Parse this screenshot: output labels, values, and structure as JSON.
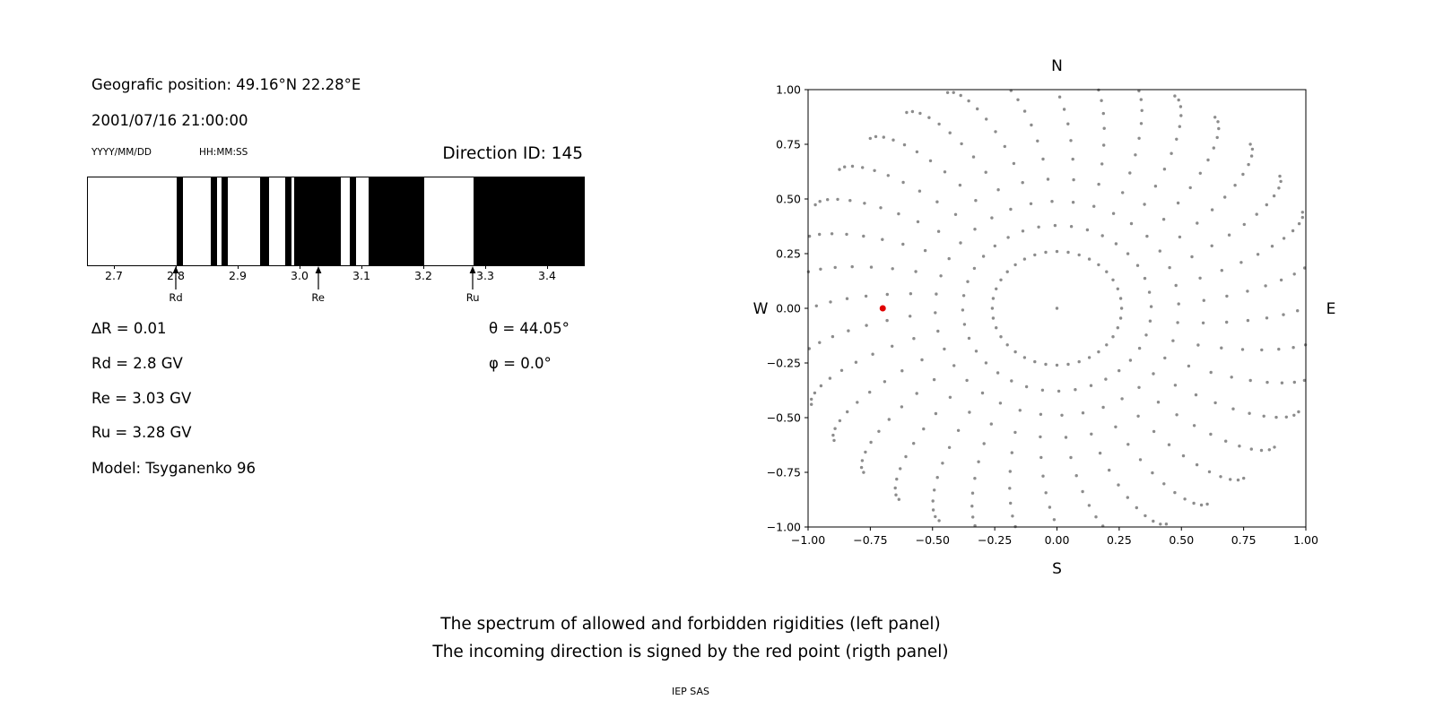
{
  "header": {
    "geo_position": "Geografic position: 49.16°N 22.28°E",
    "datetime": "2001/07/16 21:00:00",
    "date_format": "YYYY/MM/DD",
    "time_format": "HH:MM:SS",
    "direction_id": "Direction ID: 145"
  },
  "info": {
    "delta_r": "∆R = 0.01",
    "rd": "Rd = 2.8 GV",
    "re": "Re = 3.03 GV",
    "ru": "Ru = 3.28 GV",
    "model": "Model: Tsyganenko 96",
    "theta": "θ = 44.05°",
    "phi": "φ = 0.0°"
  },
  "caption": {
    "line1": "The spectrum of allowed and forbidden rigidities (left panel)",
    "line2": "The incoming direction is signed by the red point (rigth panel)",
    "credit": "IEP SAS"
  },
  "chart_data": [
    {
      "type": "bar",
      "description": "Cosmic-ray rigidity spectrum: black bands are forbidden rigidities, white allowed",
      "xlim": [
        2.6565,
        3.458
      ],
      "xticks": [
        2.7,
        2.8,
        2.9,
        3.0,
        3.1,
        3.2,
        3.3,
        3.4
      ],
      "forbidden_bands": [
        [
          2.8,
          2.81
        ],
        [
          2.855,
          2.865
        ],
        [
          2.872,
          2.882
        ],
        [
          2.935,
          2.95
        ],
        [
          2.975,
          2.985
        ],
        [
          2.99,
          3.065
        ],
        [
          3.08,
          3.09
        ],
        [
          3.11,
          3.2
        ],
        [
          3.28,
          3.458
        ]
      ],
      "markers": [
        {
          "label": "Rd",
          "value": 2.8
        },
        {
          "label": "Re",
          "value": 3.03
        },
        {
          "label": "Ru",
          "value": 3.28
        }
      ],
      "band_color": "#000000",
      "grid": false
    },
    {
      "type": "scatter",
      "description": "Asymptotic direction map; red point marks the incoming direction",
      "xlim": [
        -1,
        1
      ],
      "ylim": [
        -1,
        1
      ],
      "xticks": [
        -1,
        -0.75,
        -0.5,
        -0.25,
        0,
        0.25,
        0.5,
        0.75,
        1
      ],
      "yticks": [
        -1,
        -0.75,
        -0.5,
        -0.25,
        0,
        0.25,
        0.5,
        0.75,
        1
      ],
      "direction_labels": {
        "top": "N",
        "bottom": "S",
        "left": "W",
        "right": "E"
      },
      "red_point": [
        -0.7,
        0.0
      ],
      "red_color": "#e00000",
      "dot_color": "#8c8c8c",
      "gray_pattern": {
        "n_spokes": 36,
        "points_per_spoke": 13,
        "inner_radius": 0.26,
        "outer_radius": 1.08,
        "twist_deg": 14,
        "density_power": 1.8,
        "center_point": true
      },
      "grid": false
    }
  ]
}
